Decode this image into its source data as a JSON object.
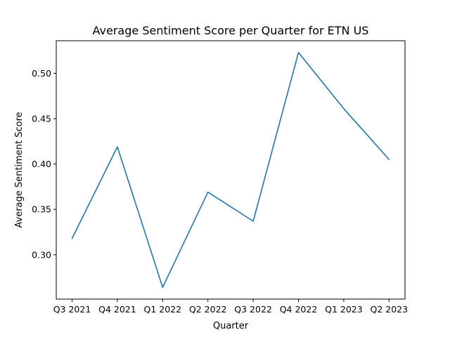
{
  "chart_data": {
    "type": "line",
    "title": "Average Sentiment Score per Quarter for ETN US",
    "xlabel": "Quarter",
    "ylabel": "Average Sentiment Score",
    "categories": [
      "Q3 2021",
      "Q4 2021",
      "Q1 2022",
      "Q2 2022",
      "Q3 2022",
      "Q4 2022",
      "Q1 2023",
      "Q2 2023"
    ],
    "series": [
      {
        "values": [
          0.318,
          0.419,
          0.264,
          0.369,
          0.337,
          0.523,
          0.461,
          0.405
        ],
        "color": "#1f77b4"
      }
    ],
    "yticks": [
      0.3,
      0.35,
      0.4,
      0.45,
      0.5
    ],
    "ytick_labels": [
      "0.30",
      "0.35",
      "0.40",
      "0.45",
      "0.50"
    ],
    "ylim": [
      0.2511,
      0.5359
    ],
    "grid": false,
    "legend": "none"
  }
}
